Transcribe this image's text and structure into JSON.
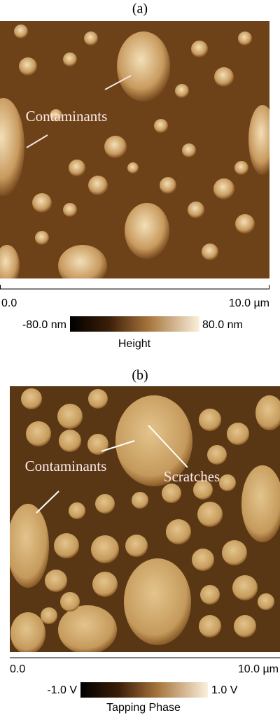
{
  "panels": [
    {
      "label": "(a)",
      "annotations": [
        "Contaminants"
      ],
      "scale_start": "0.0",
      "scale_end": "10.0 µm",
      "colorbar_min": "-80.0 nm",
      "colorbar_max": "80.0 nm",
      "colorbar_title": "Height"
    },
    {
      "label": "(b)",
      "annotations": [
        "Contaminants",
        "Scratches"
      ],
      "scale_start": "0.0",
      "scale_end": "10.0 µm",
      "colorbar_min": "-1.0 V",
      "colorbar_max": "1.0 V",
      "colorbar_title": "Tapping Phase"
    }
  ]
}
